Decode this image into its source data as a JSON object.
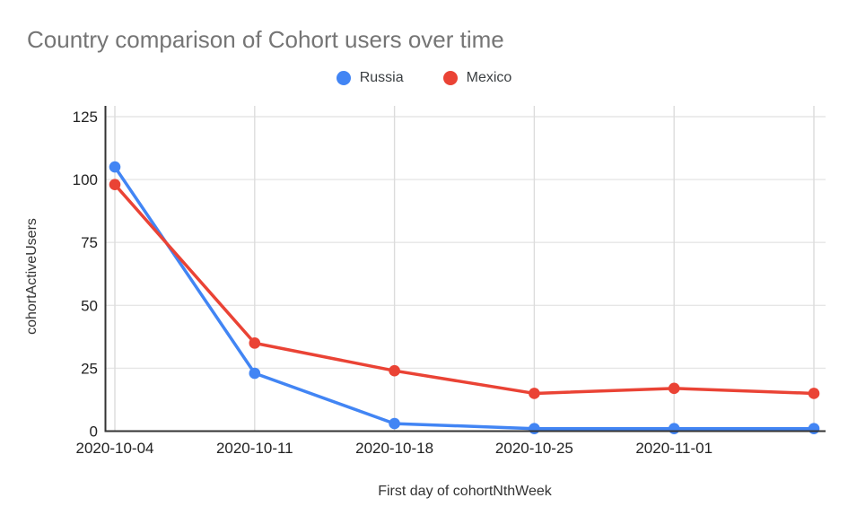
{
  "chart_data": {
    "type": "line",
    "title": "Country comparison of Cohort users over time",
    "xlabel": "First day of cohortNthWeek",
    "ylabel": "cohortActiveUsers",
    "categories": [
      "2020-10-04",
      "2020-10-11",
      "2020-10-18",
      "2020-10-25",
      "2020-11-01",
      ""
    ],
    "series": [
      {
        "name": "Russia",
        "color": "#4285f4",
        "values": [
          105,
          23,
          3,
          1,
          1,
          1
        ]
      },
      {
        "name": "Mexico",
        "color": "#ea4335",
        "values": [
          98,
          35,
          24,
          15,
          17,
          15
        ]
      }
    ],
    "ylim": [
      0,
      125
    ],
    "y_ticks": [
      0,
      25,
      50,
      75,
      100,
      125
    ],
    "grid": true,
    "legend_position": "top",
    "marker": "circle"
  },
  "colors": {
    "background": "#ffffff",
    "title_text": "#757575",
    "axis_title_text": "#333333",
    "tick_text": "#222222",
    "legend_text": "#3c4043",
    "grid_horizontal": "#e6e6e6",
    "grid_vertical": "#dcdcdc",
    "axis_line": "#333333",
    "series_russia": "#4285f4",
    "series_mexico": "#ea4335"
  }
}
